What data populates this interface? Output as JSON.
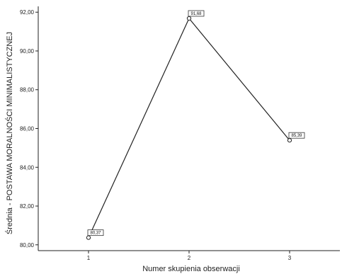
{
  "chart_data": {
    "type": "line",
    "title": "",
    "xlabel": "Numer skupienia obserwacji",
    "ylabel": "Średnia - POSTAWA MORALNOŚCI MINIMALISTYCZNEJ",
    "x": [
      1,
      2,
      3
    ],
    "x_tick_labels": [
      "1",
      "2",
      "3"
    ],
    "xlim": [
      0.5,
      3.5
    ],
    "y_ticks": [
      80,
      82,
      84,
      86,
      88,
      90,
      92
    ],
    "y_tick_labels": [
      "80,00",
      "82,00",
      "84,00",
      "86,00",
      "88,00",
      "90,00",
      "92,00"
    ],
    "ylim": [
      79.7,
      92.3
    ],
    "grid": false,
    "legend": "none",
    "series": [
      {
        "values": [
          80.37,
          91.68,
          85.39
        ],
        "data_labels": [
          "80,37",
          "91,68",
          "85,39"
        ],
        "color": "#222222",
        "marker": "open-circle"
      }
    ]
  }
}
